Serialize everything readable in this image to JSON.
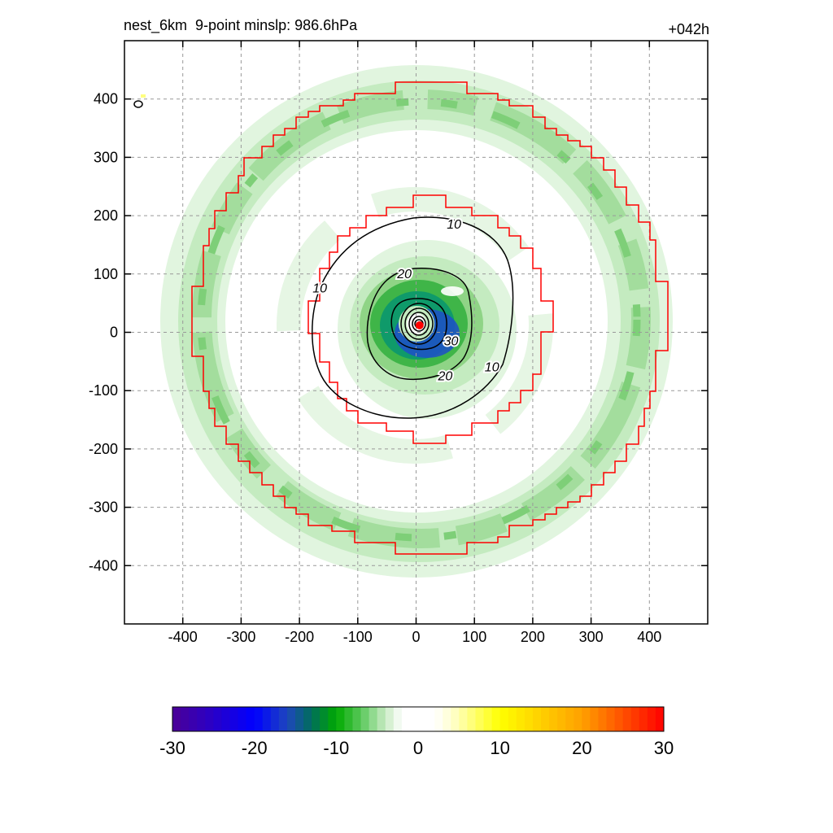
{
  "chart_data": {
    "type": "heatmap",
    "title": "nest_6km  9-point minslp: 986.6hPa",
    "forecast_hour": "+042h",
    "x_ticks": [
      -400,
      -300,
      -200,
      -100,
      0,
      100,
      200,
      300,
      400
    ],
    "y_ticks": [
      400,
      300,
      200,
      100,
      0,
      -100,
      -200,
      -300,
      -400
    ],
    "xlim": [
      -500,
      500
    ],
    "ylim": [
      -500,
      500
    ],
    "grid": true,
    "colorbar": {
      "min": -30,
      "max": 30,
      "ticks": [
        -30,
        -20,
        -10,
        0,
        10,
        20,
        30
      ]
    },
    "contour_levels": [
      10,
      20,
      30
    ],
    "contour_labels": [
      {
        "text": "10",
        "x": 65,
        "y": 185
      },
      {
        "text": "20",
        "x": -20,
        "y": 100
      },
      {
        "text": "10",
        "x": -165,
        "y": 75
      },
      {
        "text": "30",
        "x": 60,
        "y": -15
      },
      {
        "text": "20",
        "x": 50,
        "y": -75
      },
      {
        "text": "10",
        "x": 130,
        "y": -60
      }
    ],
    "center": {
      "x": 6,
      "y": 12
    }
  }
}
